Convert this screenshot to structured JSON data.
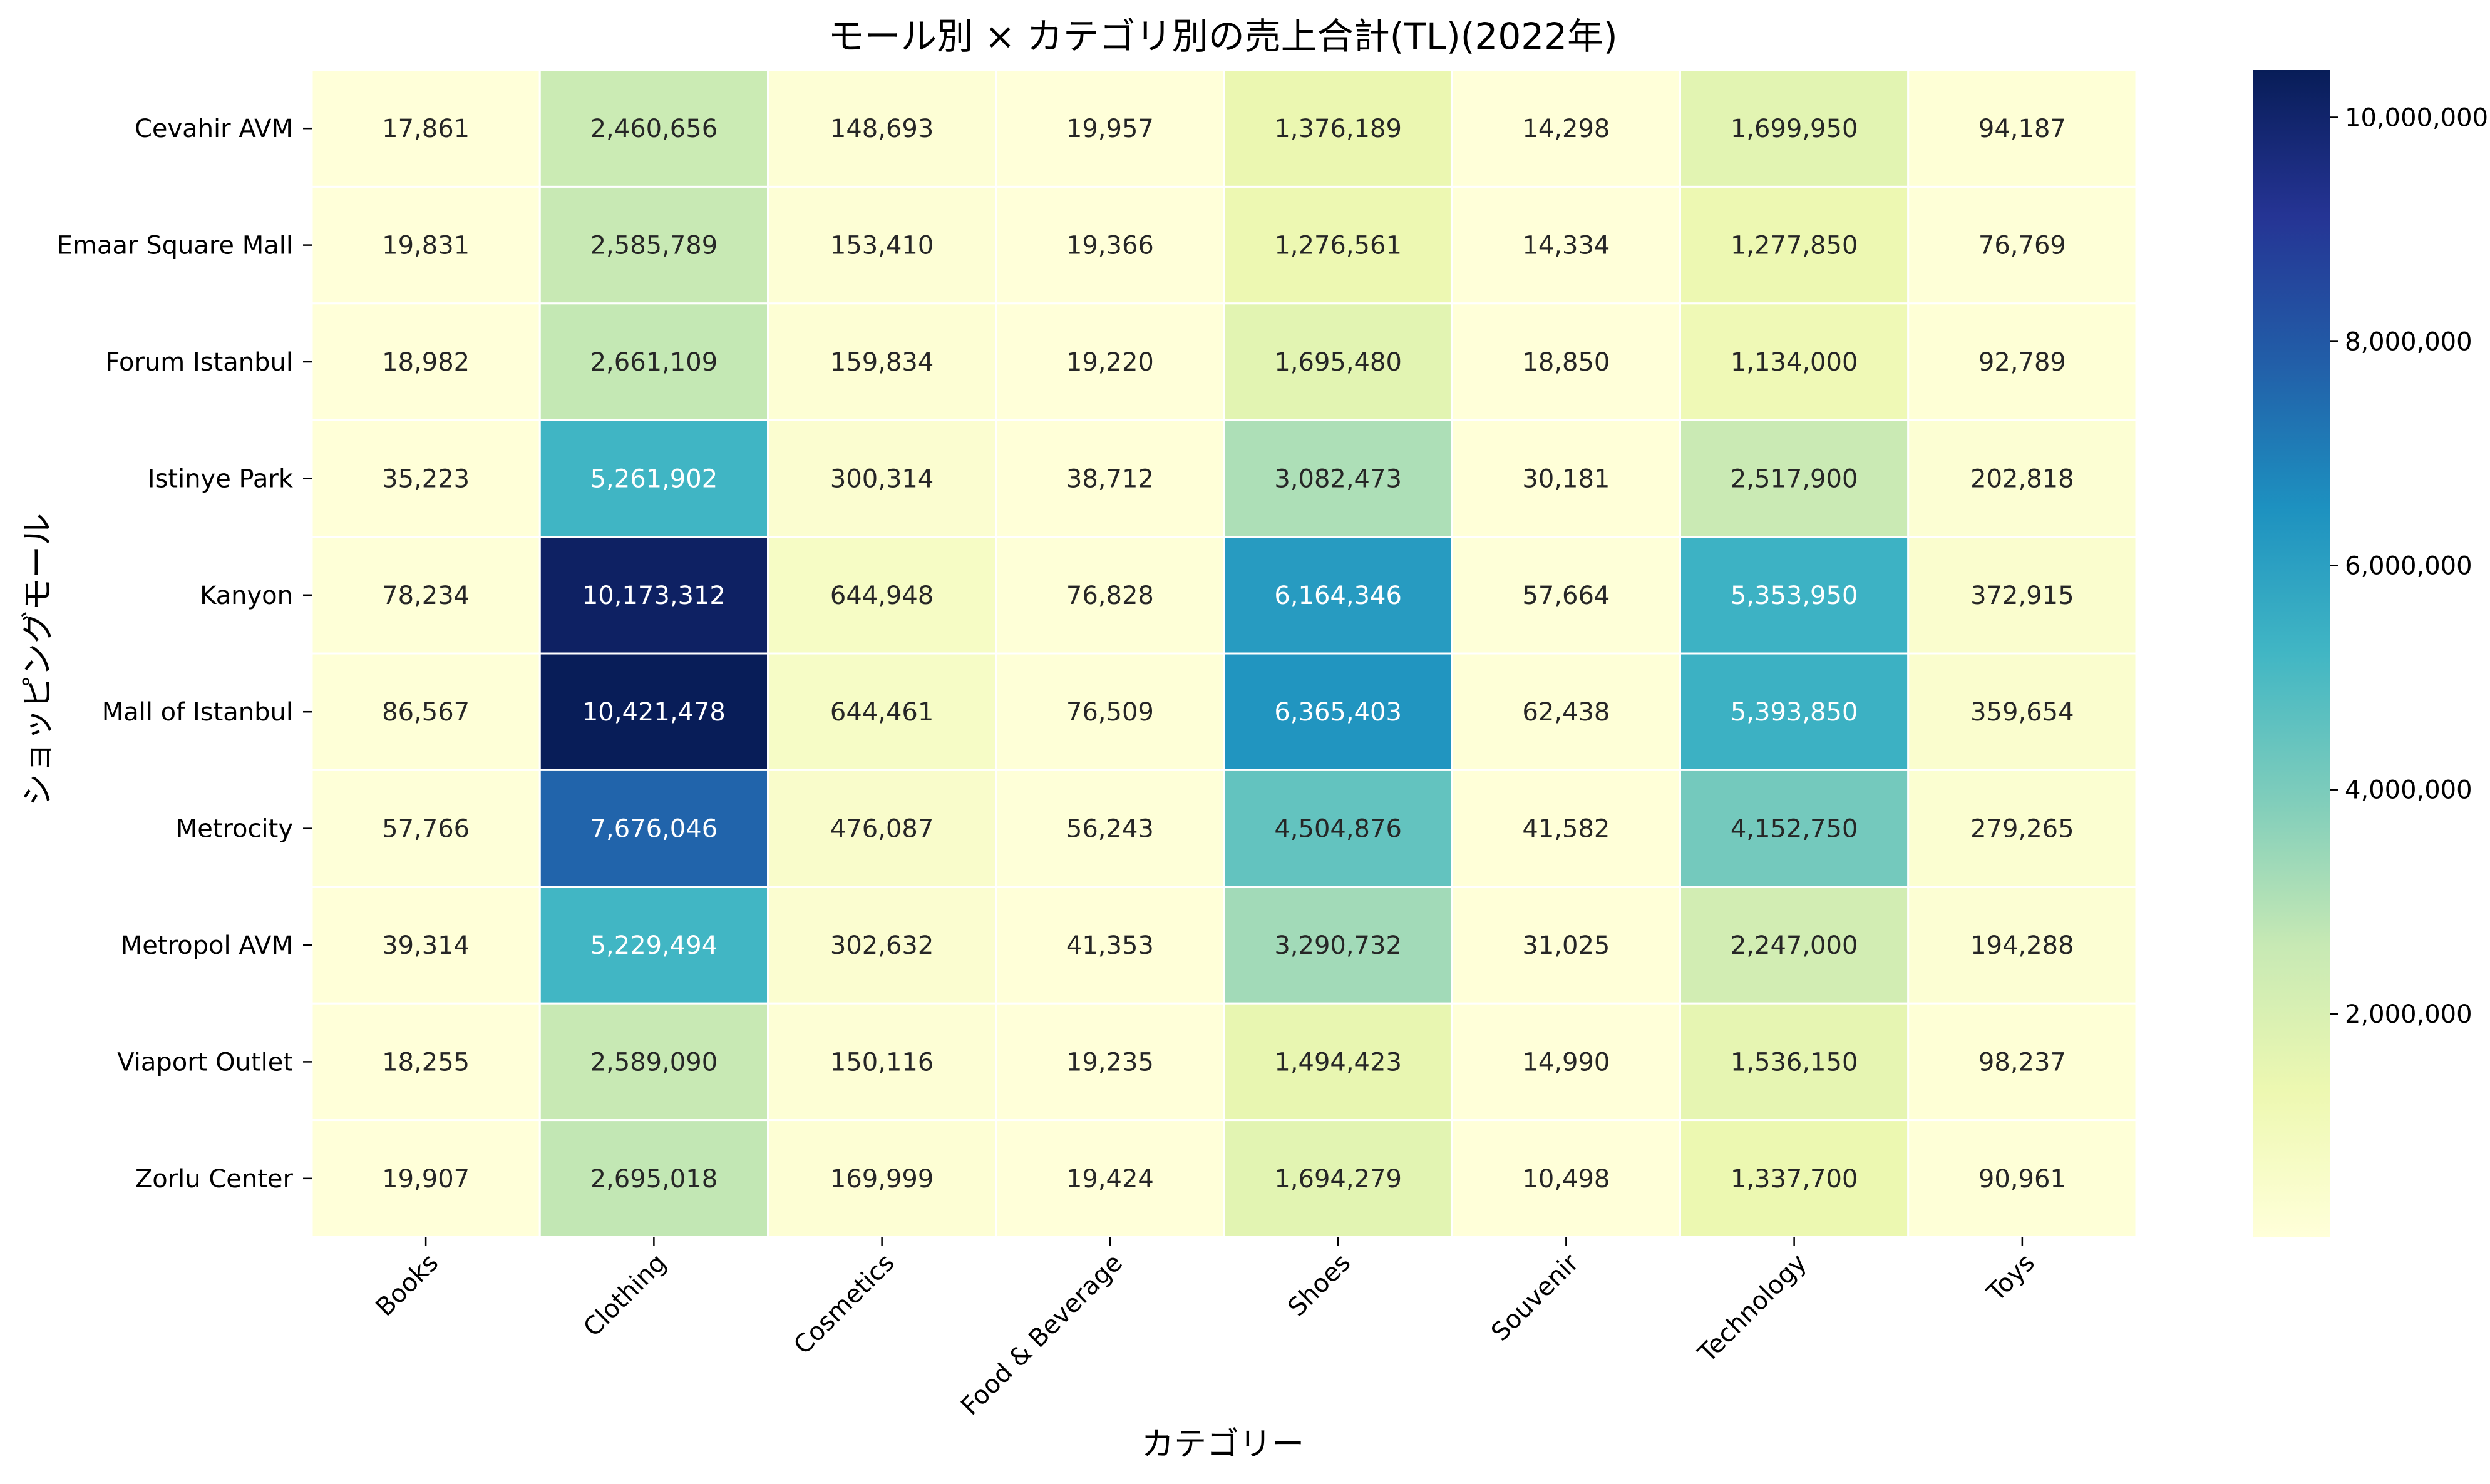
{
  "chart_data": {
    "type": "heatmap",
    "title": "モール別 × カテゴリ別の売上合計(TL)(2022年)",
    "xlabel": "カテゴリー",
    "ylabel": "ショッピングモール",
    "x_categories": [
      "Books",
      "Clothing",
      "Cosmetics",
      "Food & Beverage",
      "Shoes",
      "Souvenir",
      "Technology",
      "Toys"
    ],
    "y_categories": [
      "Cevahir AVM",
      "Emaar Square Mall",
      "Forum Istanbul",
      "Istinye Park",
      "Kanyon",
      "Mall of Istanbul",
      "Metrocity",
      "Metropol AVM",
      "Viaport Outlet",
      "Zorlu Center"
    ],
    "values": [
      [
        17861,
        2460656,
        148693,
        19957,
        1376189,
        14298,
        1699950,
        94187
      ],
      [
        19831,
        2585789,
        153410,
        19366,
        1276561,
        14334,
        1277850,
        76769
      ],
      [
        18982,
        2661109,
        159834,
        19220,
        1695480,
        18850,
        1134000,
        92789
      ],
      [
        35223,
        5261902,
        300314,
        38712,
        3082473,
        30181,
        2517900,
        202818
      ],
      [
        78234,
        10173312,
        644948,
        76828,
        6164346,
        57664,
        5353950,
        372915
      ],
      [
        86567,
        10421478,
        644461,
        76509,
        6365403,
        62438,
        5393850,
        359654
      ],
      [
        57766,
        7676046,
        476087,
        56243,
        4504876,
        41582,
        4152750,
        279265
      ],
      [
        39314,
        5229494,
        302632,
        41353,
        3290732,
        31025,
        2247000,
        194288
      ],
      [
        18255,
        2589090,
        150116,
        19235,
        1494423,
        14990,
        1536150,
        98237
      ],
      [
        19907,
        2695018,
        169999,
        19424,
        1694279,
        10498,
        1337700,
        90961
      ]
    ],
    "cell_labels": [
      [
        "17,861",
        "2,460,656",
        "148,693",
        "19,957",
        "1,376,189",
        "14,298",
        "1,699,950",
        "94,187"
      ],
      [
        "19,831",
        "2,585,789",
        "153,410",
        "19,366",
        "1,276,561",
        "14,334",
        "1,277,850",
        "76,769"
      ],
      [
        "18,982",
        "2,661,109",
        "159,834",
        "19,220",
        "1,695,480",
        "18,850",
        "1,134,000",
        "92,789"
      ],
      [
        "35,223",
        "5,261,902",
        "300,314",
        "38,712",
        "3,082,473",
        "30,181",
        "2,517,900",
        "202,818"
      ],
      [
        "78,234",
        "10,173,312",
        "644,948",
        "76,828",
        "6,164,346",
        "57,664",
        "5,353,950",
        "372,915"
      ],
      [
        "86,567",
        "10,421,478",
        "644,461",
        "76,509",
        "6,365,403",
        "62,438",
        "5,393,850",
        "359,654"
      ],
      [
        "57,766",
        "7,676,046",
        "476,087",
        "56,243",
        "4,504,876",
        "41,582",
        "4,152,750",
        "279,265"
      ],
      [
        "39,314",
        "5,229,494",
        "302,632",
        "41,353",
        "3,290,732",
        "31,025",
        "2,247,000",
        "194,288"
      ],
      [
        "18,255",
        "2,589,090",
        "150,116",
        "19,235",
        "1,494,423",
        "14,990",
        "1,536,150",
        "98,237"
      ],
      [
        "19,907",
        "2,695,018",
        "169,999",
        "19,424",
        "1,694,279",
        "10,498",
        "1,337,700",
        "90,961"
      ]
    ],
    "colormap": "YlGnBu",
    "colormap_stops": [
      "#ffffd9",
      "#edf8b1",
      "#c7e9b4",
      "#7fcdbb",
      "#41b6c4",
      "#1d91c0",
      "#225ea8",
      "#253494",
      "#081d58"
    ],
    "vmin": 10498,
    "vmax": 10421478,
    "colorbar_ticks": [
      2000000,
      4000000,
      6000000,
      8000000,
      10000000
    ],
    "colorbar_tick_labels": [
      "2,000,000",
      "4,000,000",
      "6,000,000",
      "8,000,000",
      "10,000,000"
    ],
    "cell_separator_color": "#ffffff",
    "grid": false,
    "legend": "colorbar-right"
  }
}
